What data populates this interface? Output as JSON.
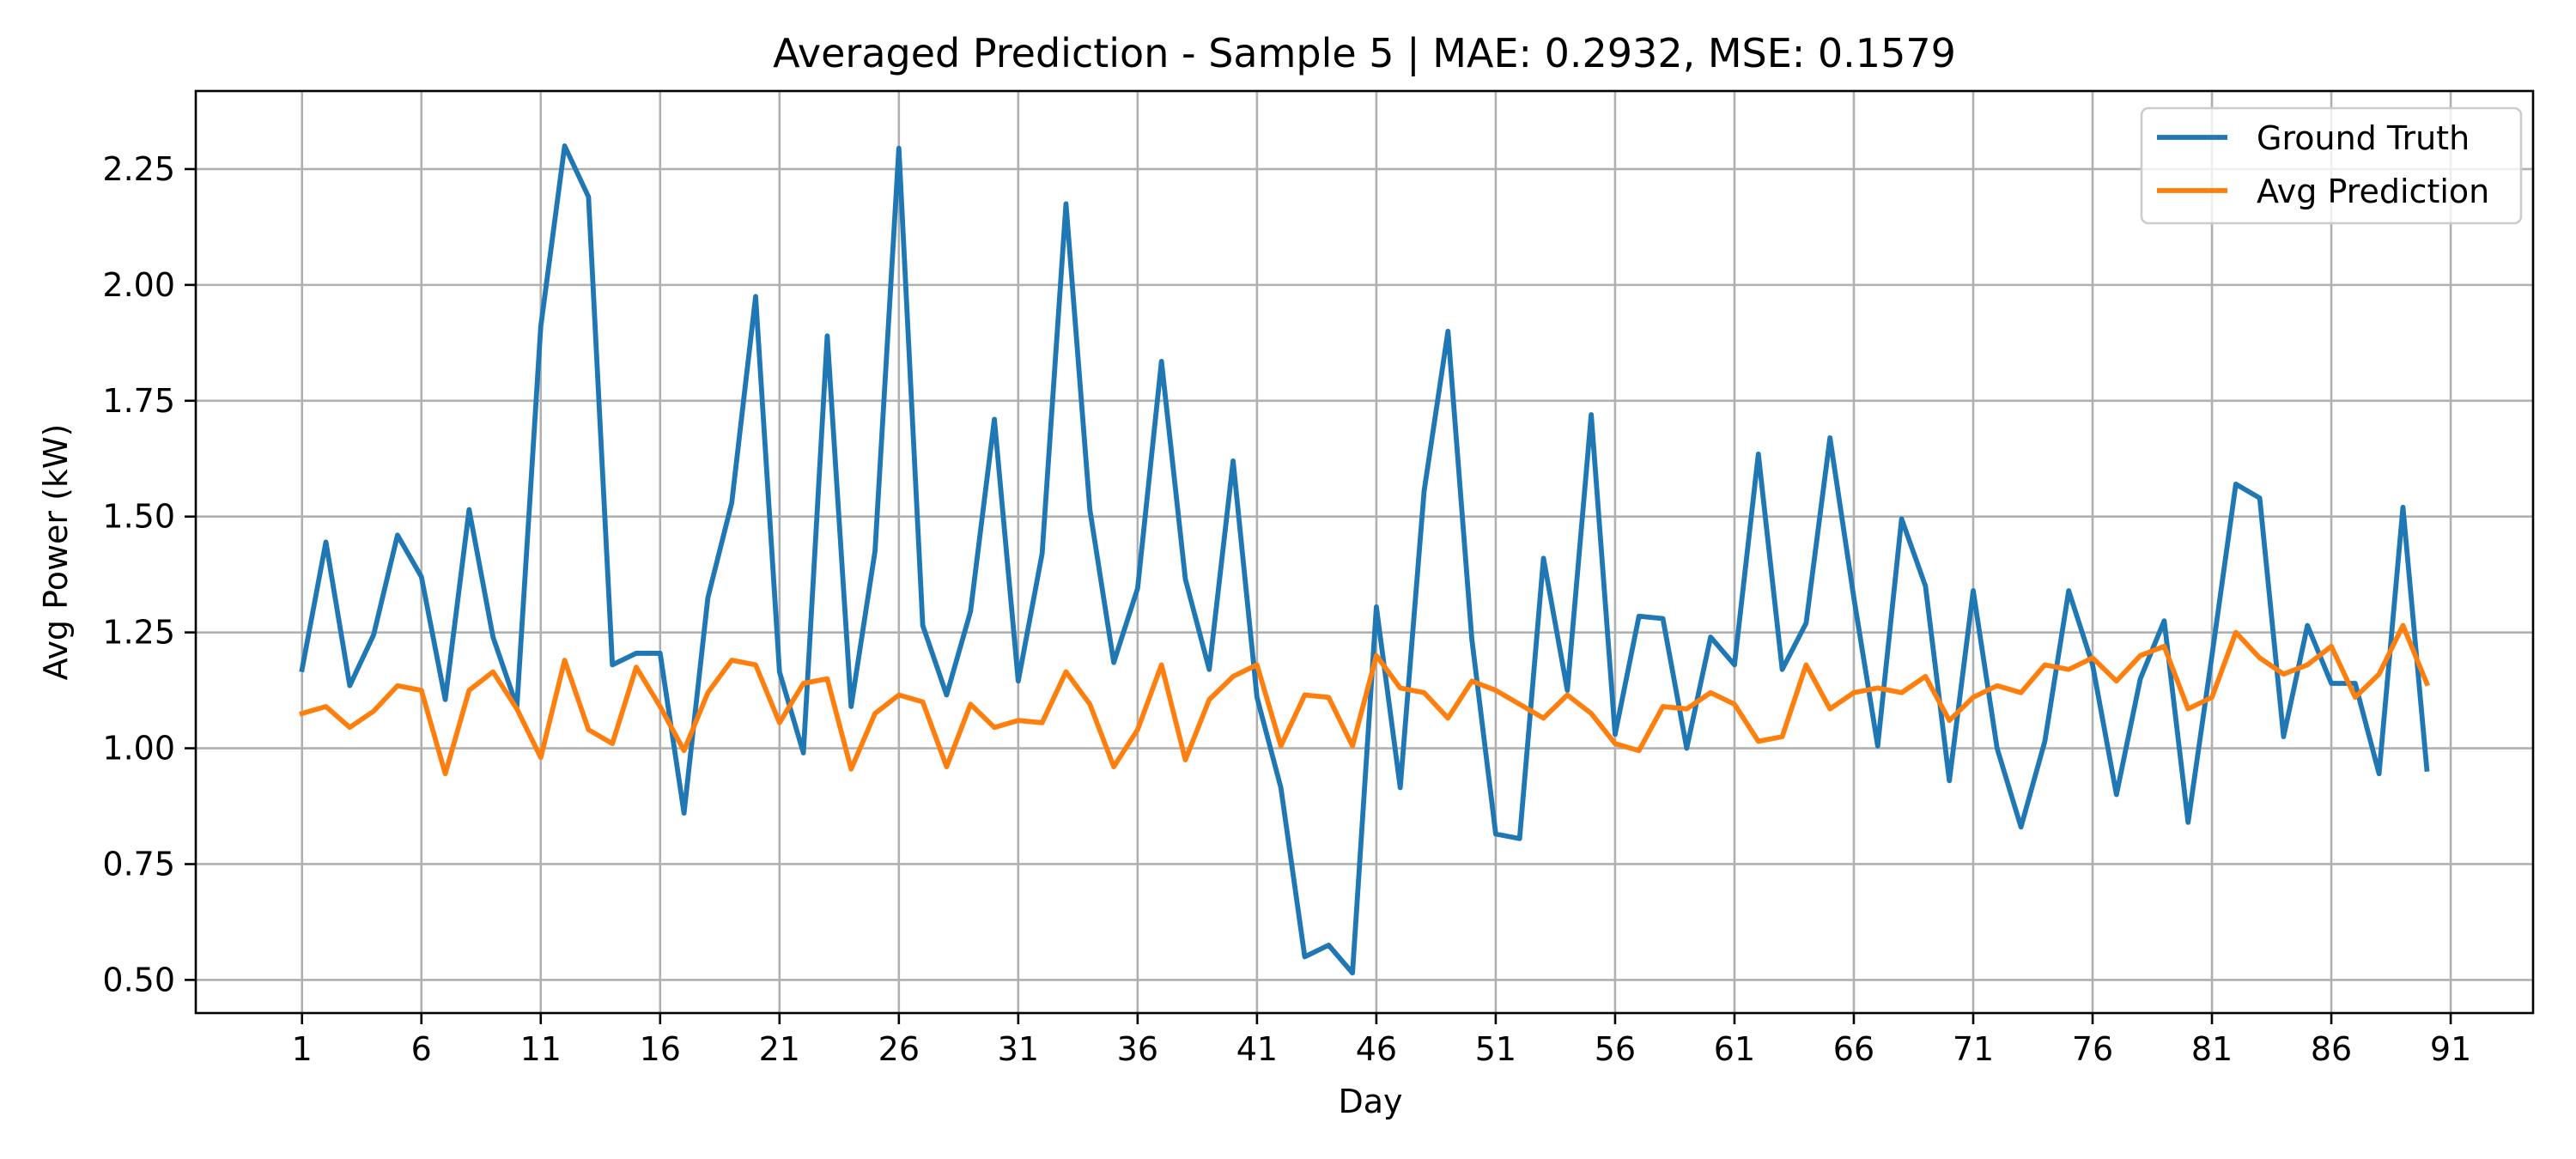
{
  "chart_data": {
    "type": "line",
    "title": "Averaged Prediction - Sample 5 | MAE: 0.2932, MSE: 0.1579",
    "xlabel": "Day",
    "ylabel": "Avg Power (kW)",
    "xlim": [
      -3.45,
      94.45
    ],
    "ylim": [
      0.4285,
      2.4185
    ],
    "x_ticks": [
      1,
      6,
      11,
      16,
      21,
      26,
      31,
      36,
      41,
      46,
      51,
      56,
      61,
      66,
      71,
      76,
      81,
      86,
      91
    ],
    "y_ticks": [
      0.5,
      0.75,
      1.0,
      1.25,
      1.5,
      1.75,
      2.0,
      2.25
    ],
    "y_tick_labels": [
      "0.50",
      "0.75",
      "1.00",
      "1.25",
      "1.50",
      "1.75",
      "2.00",
      "2.25"
    ],
    "grid": true,
    "legend_position": "top-right",
    "x": [
      1,
      2,
      3,
      4,
      5,
      6,
      7,
      8,
      9,
      10,
      11,
      12,
      13,
      14,
      15,
      16,
      17,
      18,
      19,
      20,
      21,
      22,
      23,
      24,
      25,
      26,
      27,
      28,
      29,
      30,
      31,
      32,
      33,
      34,
      35,
      36,
      37,
      38,
      39,
      40,
      41,
      42,
      43,
      44,
      45,
      46,
      47,
      48,
      49,
      50,
      51,
      52,
      53,
      54,
      55,
      56,
      57,
      58,
      59,
      60,
      61,
      62,
      63,
      64,
      65,
      66,
      67,
      68,
      69,
      70,
      71,
      72,
      73,
      74,
      75,
      76,
      77,
      78,
      79,
      80,
      81,
      82,
      83,
      84,
      85,
      86,
      87,
      88,
      89,
      90
    ],
    "series": [
      {
        "name": "Ground Truth",
        "color": "#1f77b4",
        "values": [
          1.17,
          1.445,
          1.135,
          1.245,
          1.46,
          1.37,
          1.105,
          1.515,
          1.24,
          1.09,
          1.91,
          2.3,
          2.19,
          1.18,
          1.205,
          1.205,
          0.86,
          1.325,
          1.53,
          1.975,
          1.165,
          0.99,
          1.89,
          1.09,
          1.425,
          2.295,
          1.265,
          1.115,
          1.295,
          1.71,
          1.145,
          1.42,
          2.175,
          1.515,
          1.185,
          1.345,
          1.835,
          1.365,
          1.17,
          1.62,
          1.11,
          0.915,
          0.55,
          0.575,
          0.515,
          1.305,
          0.915,
          1.555,
          1.9,
          1.235,
          0.815,
          0.805,
          1.41,
          1.125,
          1.72,
          1.03,
          1.285,
          1.28,
          1.0,
          1.24,
          1.18,
          1.635,
          1.17,
          1.27,
          1.67,
          1.325,
          1.005,
          1.495,
          1.35,
          0.93,
          1.34,
          1.0,
          0.83,
          1.015,
          1.34,
          1.18,
          0.9,
          1.15,
          1.275,
          0.84,
          1.2,
          1.57,
          1.54,
          1.025,
          1.265,
          1.14,
          1.14,
          0.945,
          1.52,
          0.955
        ]
      },
      {
        "name": "Avg Prediction",
        "color": "#ff7f0e",
        "values": [
          1.075,
          1.09,
          1.045,
          1.08,
          1.135,
          1.125,
          0.945,
          1.125,
          1.165,
          1.085,
          0.98,
          1.19,
          1.04,
          1.01,
          1.175,
          1.09,
          0.995,
          1.12,
          1.19,
          1.18,
          1.055,
          1.14,
          1.15,
          0.955,
          1.075,
          1.115,
          1.1,
          0.96,
          1.095,
          1.045,
          1.06,
          1.055,
          1.165,
          1.095,
          0.96,
          1.04,
          1.18,
          0.975,
          1.105,
          1.155,
          1.18,
          1.005,
          1.115,
          1.11,
          1.005,
          1.2,
          1.13,
          1.12,
          1.065,
          1.145,
          1.125,
          1.095,
          1.065,
          1.115,
          1.075,
          1.01,
          0.995,
          1.09,
          1.085,
          1.12,
          1.095,
          1.015,
          1.025,
          1.18,
          1.085,
          1.12,
          1.13,
          1.12,
          1.155,
          1.06,
          1.11,
          1.135,
          1.12,
          1.18,
          1.17,
          1.195,
          1.145,
          1.2,
          1.22,
          1.085,
          1.11,
          1.25,
          1.195,
          1.16,
          1.18,
          1.22,
          1.11,
          1.16,
          1.265,
          1.14
        ]
      }
    ]
  }
}
